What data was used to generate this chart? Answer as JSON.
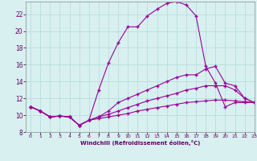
{
  "xlabel": "Windchill (Refroidissement éolien,°C)",
  "bg_color": "#d8f0f0",
  "line_color": "#990099",
  "grid_color": "#b8dede",
  "xlim": [
    -0.5,
    23
  ],
  "ylim": [
    8,
    23.5
  ],
  "xticks": [
    0,
    1,
    2,
    3,
    4,
    5,
    6,
    7,
    8,
    9,
    10,
    11,
    12,
    13,
    14,
    15,
    16,
    17,
    18,
    19,
    20,
    21,
    22,
    23
  ],
  "yticks": [
    8,
    10,
    12,
    14,
    16,
    18,
    20,
    22
  ],
  "line1_x": [
    0,
    1,
    2,
    3,
    4,
    5,
    6,
    7,
    8,
    9,
    10,
    11,
    12,
    13,
    14,
    15,
    16,
    17,
    18,
    19,
    20,
    21,
    22,
    23
  ],
  "line1_y": [
    11.0,
    10.5,
    9.8,
    9.9,
    9.8,
    8.8,
    9.4,
    13.0,
    16.2,
    18.6,
    20.5,
    20.5,
    21.8,
    22.6,
    23.3,
    23.5,
    23.1,
    21.8,
    15.8,
    13.8,
    11.0,
    11.5,
    11.5,
    11.5
  ],
  "line2_x": [
    0,
    1,
    2,
    3,
    4,
    5,
    6,
    7,
    8,
    9,
    10,
    11,
    12,
    13,
    14,
    15,
    16,
    17,
    18,
    19,
    20,
    21,
    22,
    23
  ],
  "line2_y": [
    11.0,
    10.5,
    9.8,
    9.9,
    9.8,
    8.8,
    9.4,
    9.8,
    10.5,
    11.5,
    12.0,
    12.5,
    13.0,
    13.5,
    14.0,
    14.5,
    14.8,
    14.8,
    15.5,
    15.8,
    13.8,
    13.5,
    12.0,
    11.5
  ],
  "line3_x": [
    0,
    1,
    2,
    3,
    4,
    5,
    6,
    7,
    8,
    9,
    10,
    11,
    12,
    13,
    14,
    15,
    16,
    17,
    18,
    19,
    20,
    21,
    22,
    23
  ],
  "line3_y": [
    11.0,
    10.5,
    9.8,
    9.9,
    9.8,
    8.8,
    9.4,
    9.8,
    10.1,
    10.5,
    10.9,
    11.3,
    11.7,
    12.0,
    12.3,
    12.6,
    13.0,
    13.2,
    13.5,
    13.5,
    13.5,
    13.0,
    12.0,
    11.5
  ],
  "line4_x": [
    0,
    1,
    2,
    3,
    4,
    5,
    6,
    7,
    8,
    9,
    10,
    11,
    12,
    13,
    14,
    15,
    16,
    17,
    18,
    19,
    20,
    21,
    22,
    23
  ],
  "line4_y": [
    11.0,
    10.5,
    9.8,
    9.9,
    9.8,
    8.8,
    9.4,
    9.6,
    9.8,
    10.0,
    10.2,
    10.5,
    10.7,
    10.9,
    11.1,
    11.3,
    11.5,
    11.6,
    11.7,
    11.8,
    11.8,
    11.7,
    11.6,
    11.5
  ]
}
